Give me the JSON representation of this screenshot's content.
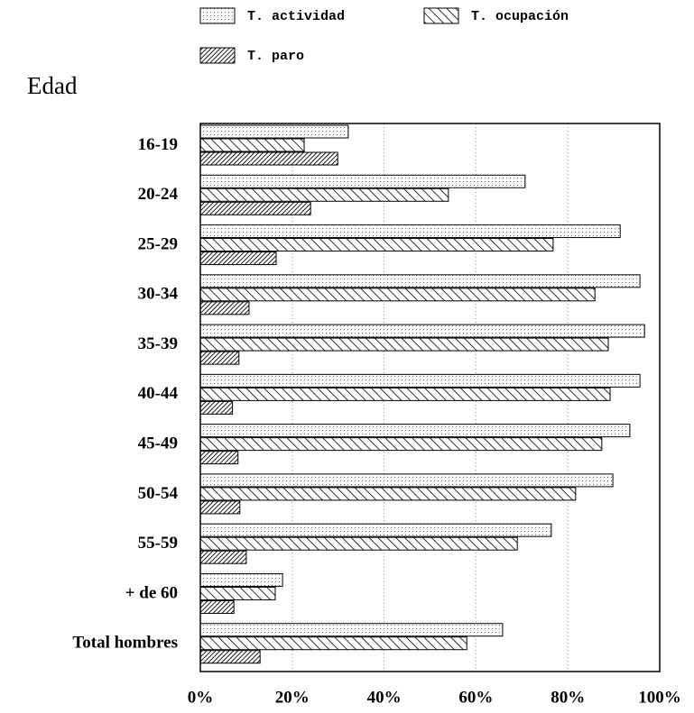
{
  "chart_data": {
    "type": "barh",
    "axis_title": "Edad",
    "categories": [
      "16-19",
      "20-24",
      "25-29",
      "30-34",
      "35-39",
      "40-44",
      "45-49",
      "50-54",
      "55-59",
      "+ de 60",
      "Total hombres"
    ],
    "series": [
      {
        "name": "T. actividad",
        "color": "#000000",
        "values": [
          32.2,
          70.7,
          91.4,
          95.7,
          96.7,
          95.7,
          93.5,
          89.8,
          76.4,
          17.9,
          65.8
        ]
      },
      {
        "name": "T. ocupación",
        "color": "#000000",
        "values": [
          22.6,
          54,
          76.8,
          85.9,
          88.8,
          89.2,
          87.4,
          81.7,
          69,
          16.3,
          58
        ]
      },
      {
        "name": "T. paro",
        "color": "#000000",
        "values": [
          29.9,
          24,
          16.5,
          10.6,
          8.4,
          7,
          8.2,
          8.6,
          10,
          7.3,
          13
        ]
      }
    ],
    "xlim": [
      0,
      100
    ],
    "xticks": [
      {
        "value": 0,
        "label": "0%"
      },
      {
        "value": 20,
        "label": "20%"
      },
      {
        "value": 40,
        "label": "40%"
      },
      {
        "value": 60,
        "label": "60%"
      },
      {
        "value": 80,
        "label": "80%"
      },
      {
        "value": 100,
        "label": "100%"
      }
    ],
    "grid": true
  }
}
